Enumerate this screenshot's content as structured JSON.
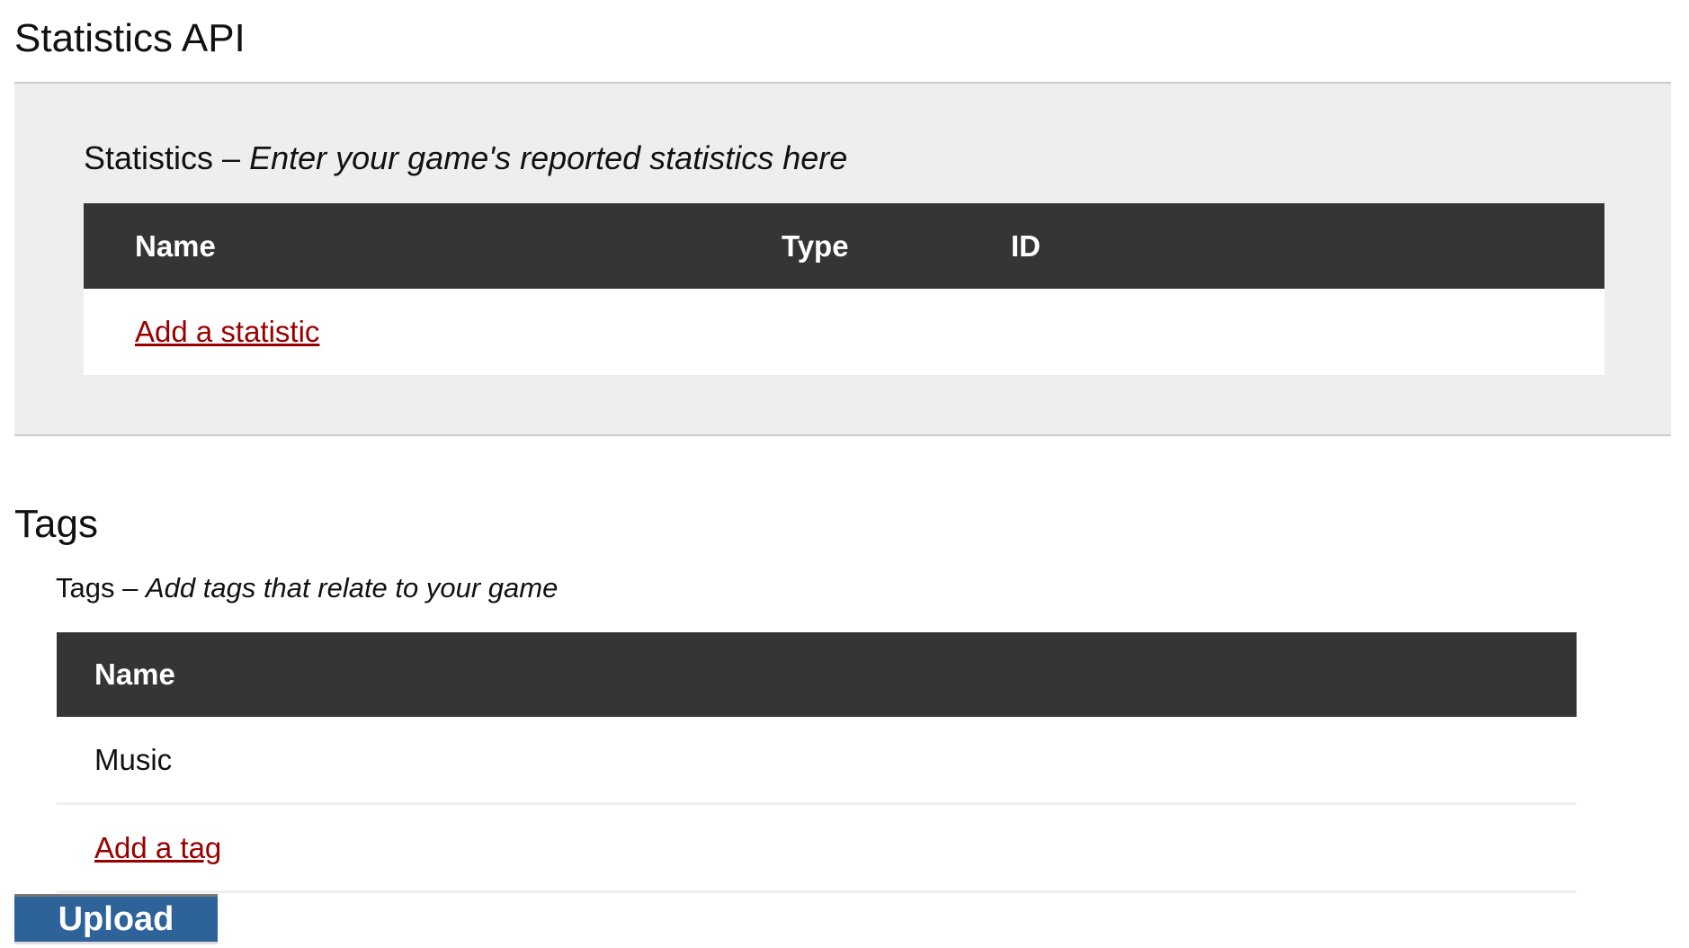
{
  "statistics": {
    "heading": "Statistics API",
    "section_label": "Statistics",
    "separator": " – ",
    "section_hint": "Enter your game's reported statistics here",
    "columns": [
      "Name",
      "Type",
      "ID"
    ],
    "add_link": "Add a statistic"
  },
  "tags": {
    "heading": "Tags",
    "section_label": "Tags",
    "separator": " – ",
    "section_hint": "Add tags that relate to your game",
    "columns": [
      "Name"
    ],
    "rows": [
      "Music"
    ],
    "add_link": "Add a tag"
  },
  "upload_button": "Upload",
  "colors": {
    "link": "#990000",
    "table_header": "#353535",
    "button": "#2e6399",
    "panel": "#eeeeee"
  }
}
